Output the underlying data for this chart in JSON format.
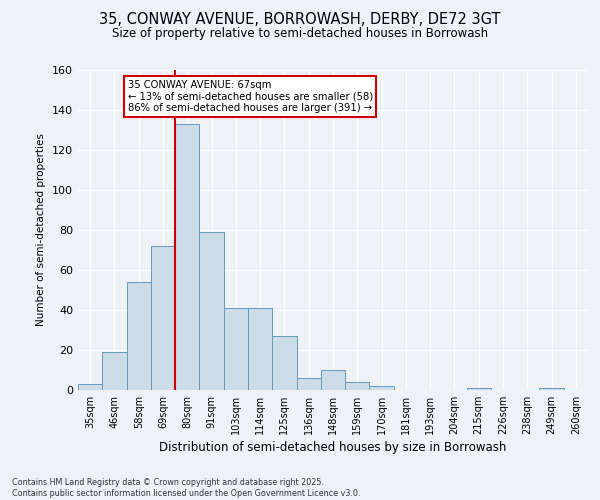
{
  "title1": "35, CONWAY AVENUE, BORROWASH, DERBY, DE72 3GT",
  "title2": "Size of property relative to semi-detached houses in Borrowash",
  "xlabel": "Distribution of semi-detached houses by size in Borrowash",
  "ylabel": "Number of semi-detached properties",
  "footnote1": "Contains HM Land Registry data © Crown copyright and database right 2025.",
  "footnote2": "Contains public sector information licensed under the Open Government Licence v3.0.",
  "categories": [
    "35sqm",
    "46sqm",
    "58sqm",
    "69sqm",
    "80sqm",
    "91sqm",
    "103sqm",
    "114sqm",
    "125sqm",
    "136sqm",
    "148sqm",
    "159sqm",
    "170sqm",
    "181sqm",
    "193sqm",
    "204sqm",
    "215sqm",
    "226sqm",
    "238sqm",
    "249sqm",
    "260sqm"
  ],
  "values": [
    3,
    19,
    54,
    72,
    133,
    79,
    41,
    41,
    27,
    6,
    10,
    4,
    2,
    0,
    0,
    0,
    1,
    0,
    0,
    1,
    0
  ],
  "bar_color": "#ccdce8",
  "bar_edge_color": "#6699bb",
  "red_line_x": 3.5,
  "annotation_title": "35 CONWAY AVENUE: 67sqm",
  "annotation_line1": "← 13% of semi-detached houses are smaller (58)",
  "annotation_line2": "86% of semi-detached houses are larger (391) →",
  "ylim": [
    0,
    160
  ],
  "yticks": [
    0,
    20,
    40,
    60,
    80,
    100,
    120,
    140,
    160
  ],
  "background_color": "#eef2f6",
  "grid_color": "#ffffff",
  "annotation_box_color": "#ffffff",
  "annotation_box_edge": "#cc0000",
  "red_line_color": "#cc0000",
  "fig_width": 6.0,
  "fig_height": 5.0,
  "dpi": 100
}
